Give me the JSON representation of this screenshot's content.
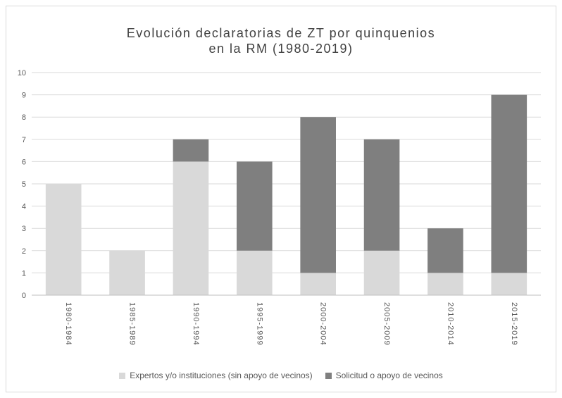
{
  "chart_data": {
    "type": "bar",
    "stacked": true,
    "title_lines": [
      "Evolución declaratorias de ZT por quinquenios",
      "en la RM (1980-2019)"
    ],
    "categories": [
      "1980-1984",
      "1985-1989",
      "1990-1994",
      "1995-1999",
      "2000-2004",
      "2005-2009",
      "2010-2014",
      "2015-2019"
    ],
    "series": [
      {
        "name": "Expertos y/o instituciones (sin apoyo de vecinos)",
        "color": "#d9d9d9",
        "values": [
          5,
          2,
          6,
          2,
          1,
          2,
          1,
          1
        ]
      },
      {
        "name": "Solicitud o apoyo de vecinos",
        "color": "#7f7f7f",
        "values": [
          0,
          0,
          1,
          4,
          7,
          5,
          2,
          8
        ]
      }
    ],
    "ylim": [
      0,
      10
    ],
    "yticks": [
      "0",
      "1",
      "2",
      "3",
      "4",
      "5",
      "6",
      "7",
      "8",
      "9",
      "10"
    ],
    "grid": true,
    "legend_position": "bottom"
  }
}
